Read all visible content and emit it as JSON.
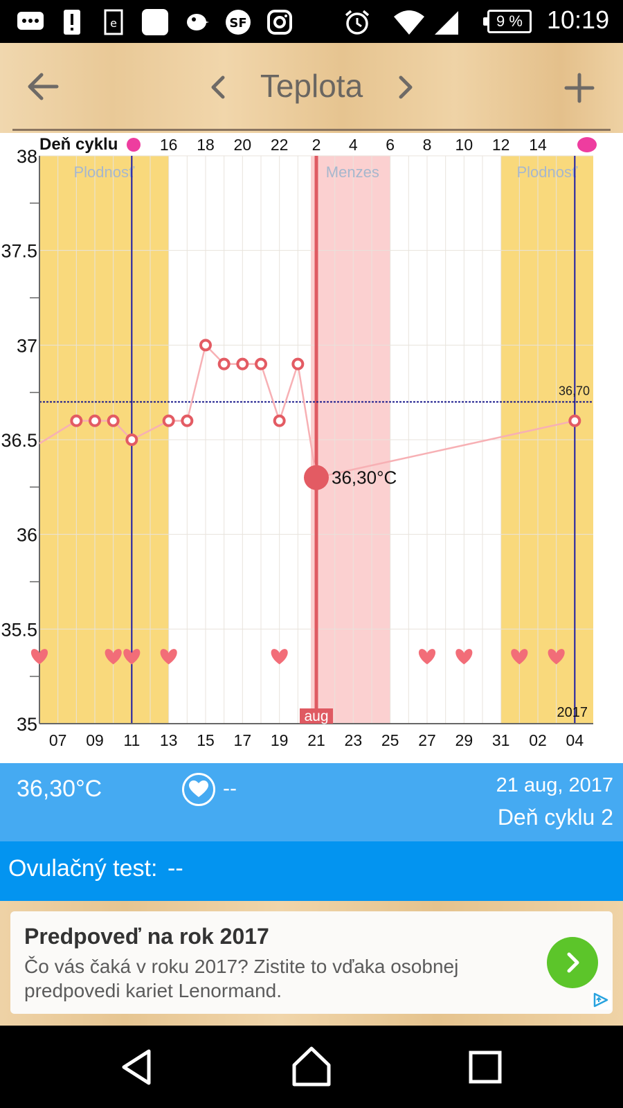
{
  "status_bar": {
    "battery": "9 %",
    "time": "10:19",
    "icons": [
      "messages-icon",
      "alert-icon",
      "ebook-icon",
      "app-square-icon",
      "bird-icon",
      "sf-icon",
      "instagram-icon",
      "alarm-icon",
      "wifi-icon",
      "signal-icon",
      "battery-icon"
    ]
  },
  "toolbar": {
    "title": "Teplota",
    "back_icon": "arrow-left-icon",
    "prev_icon": "chevron-left-icon",
    "next_icon": "chevron-right-icon",
    "add_icon": "plus-icon"
  },
  "chart_data": {
    "type": "line",
    "cycle_row_label": "Deň cyklu",
    "cycle_ticks": [
      "16",
      "18",
      "20",
      "22",
      "2",
      "4",
      "6",
      "8",
      "10",
      "12",
      "14"
    ],
    "y_ticks": [
      "38",
      "37.5",
      "37",
      "36.5",
      "36",
      "35.5",
      "35"
    ],
    "ylim": [
      35,
      38
    ],
    "x_ticks": [
      "07",
      "09",
      "11",
      "13",
      "15",
      "17",
      "19",
      "21",
      "23",
      "25",
      "27",
      "29",
      "31",
      "02",
      "04"
    ],
    "xlim": [
      6,
      36
    ],
    "series": [
      {
        "x": [
          6,
          8,
          9,
          10,
          11,
          13,
          14,
          15,
          16,
          17,
          18,
          19,
          20,
          21,
          35
        ],
        "values": [
          36.48,
          36.6,
          36.6,
          36.6,
          36.5,
          36.6,
          36.6,
          37.0,
          36.9,
          36.9,
          36.9,
          36.6,
          36.9,
          36.3,
          36.6
        ]
      }
    ],
    "selected": {
      "x": 21,
      "value": 36.3,
      "label": "36,30°C"
    },
    "coverline": {
      "value": 36.7,
      "label": "36,70"
    },
    "bands": [
      {
        "kind": "fertile",
        "from": 6,
        "to": 13,
        "label": "Plodnosť",
        "color": "#f9d97c"
      },
      {
        "kind": "menses",
        "from": 20.7,
        "to": 25,
        "label": "Menzes",
        "color": "#fbd0d0"
      },
      {
        "kind": "fertile",
        "from": 31,
        "to": 36,
        "label": "Plodnosť",
        "color": "#f9d97c"
      }
    ],
    "ovulation_lines": [
      11,
      35
    ],
    "hearts": [
      6,
      10,
      11,
      13,
      19,
      27,
      29,
      32,
      34
    ],
    "month_label": "aug",
    "year_label": "2017",
    "accent": "#e35b63",
    "line_color": "#f7b0b4"
  },
  "info": {
    "temperature": "36,30°C",
    "heart_value": "--",
    "date": "21 aug, 2017",
    "cycle_day": "Deň cyklu 2"
  },
  "ovulation_test": {
    "label": "Ovulačný test:",
    "value": "--"
  },
  "ad": {
    "title": "Predpoveď na rok 2017",
    "description": "Čo vás čaká v roku 2017? Zistite to vďaka osobnej predpovedi kariet Lenormand."
  },
  "nav": {
    "back_icon": "nav-back-icon",
    "home_icon": "nav-home-icon",
    "recents_icon": "nav-recents-icon"
  }
}
